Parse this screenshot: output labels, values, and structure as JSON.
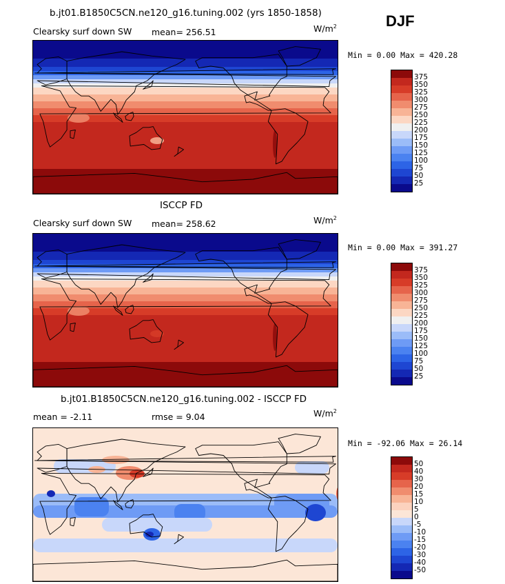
{
  "season": "DJF",
  "panels": [
    {
      "title": "b.jt01.B1850C5CN.ne120_g16.tuning.002 (yrs 1850-1858)",
      "left_label": "Clearsky surf down SW",
      "stat_text": "mean= 256.51",
      "units": "W/m",
      "units_sup": "2",
      "minmax": "Min =   0.00 Max = 420.28",
      "colorbar_labels": [
        "375",
        "350",
        "325",
        "300",
        "275",
        "250",
        "225",
        "200",
        "175",
        "150",
        "125",
        "100",
        "75",
        "50",
        "25"
      ]
    },
    {
      "title": "ISCCP FD",
      "left_label": "Clearsky surf down SW",
      "stat_text": "mean= 258.62",
      "units": "W/m",
      "units_sup": "2",
      "minmax": "Min =   0.00 Max = 391.27",
      "colorbar_labels": [
        "375",
        "350",
        "325",
        "300",
        "275",
        "250",
        "225",
        "200",
        "175",
        "150",
        "125",
        "100",
        "75",
        "50",
        "25"
      ]
    },
    {
      "title": "b.jt01.B1850C5CN.ne120_g16.tuning.002 - ISCCP FD",
      "left_label": "mean =   -2.11",
      "stat_text": "rmse =   9.04",
      "units": "W/m",
      "units_sup": "2",
      "minmax": "Min = -92.06 Max =  26.14",
      "colorbar_labels": [
        "50",
        "40",
        "30",
        "20",
        "15",
        "10",
        "5",
        "0",
        "-5",
        "-10",
        "-15",
        "-20",
        "-30",
        "-40",
        "-50"
      ]
    }
  ],
  "colors": {
    "abs_scale": [
      "#0a0a8c",
      "#1428b4",
      "#1e46d2",
      "#2d64e6",
      "#4b82f0",
      "#6e9bf5",
      "#9bbcf8",
      "#c8d7fa",
      "#f0f0f0",
      "#fcd7c3",
      "#f8b496",
      "#f08c6e",
      "#e6644b",
      "#d73c28",
      "#c3281e",
      "#8c0a0a"
    ],
    "diff_scale": [
      "#0a0a8c",
      "#1428b4",
      "#1e46d2",
      "#2d64e6",
      "#4b82f0",
      "#6e9bf5",
      "#9bbcf8",
      "#c8d7fa",
      "#fce6d7",
      "#fcd2be",
      "#f8b496",
      "#f08c6e",
      "#e6644b",
      "#d73c28",
      "#c3281e",
      "#8c0a0a"
    ]
  }
}
